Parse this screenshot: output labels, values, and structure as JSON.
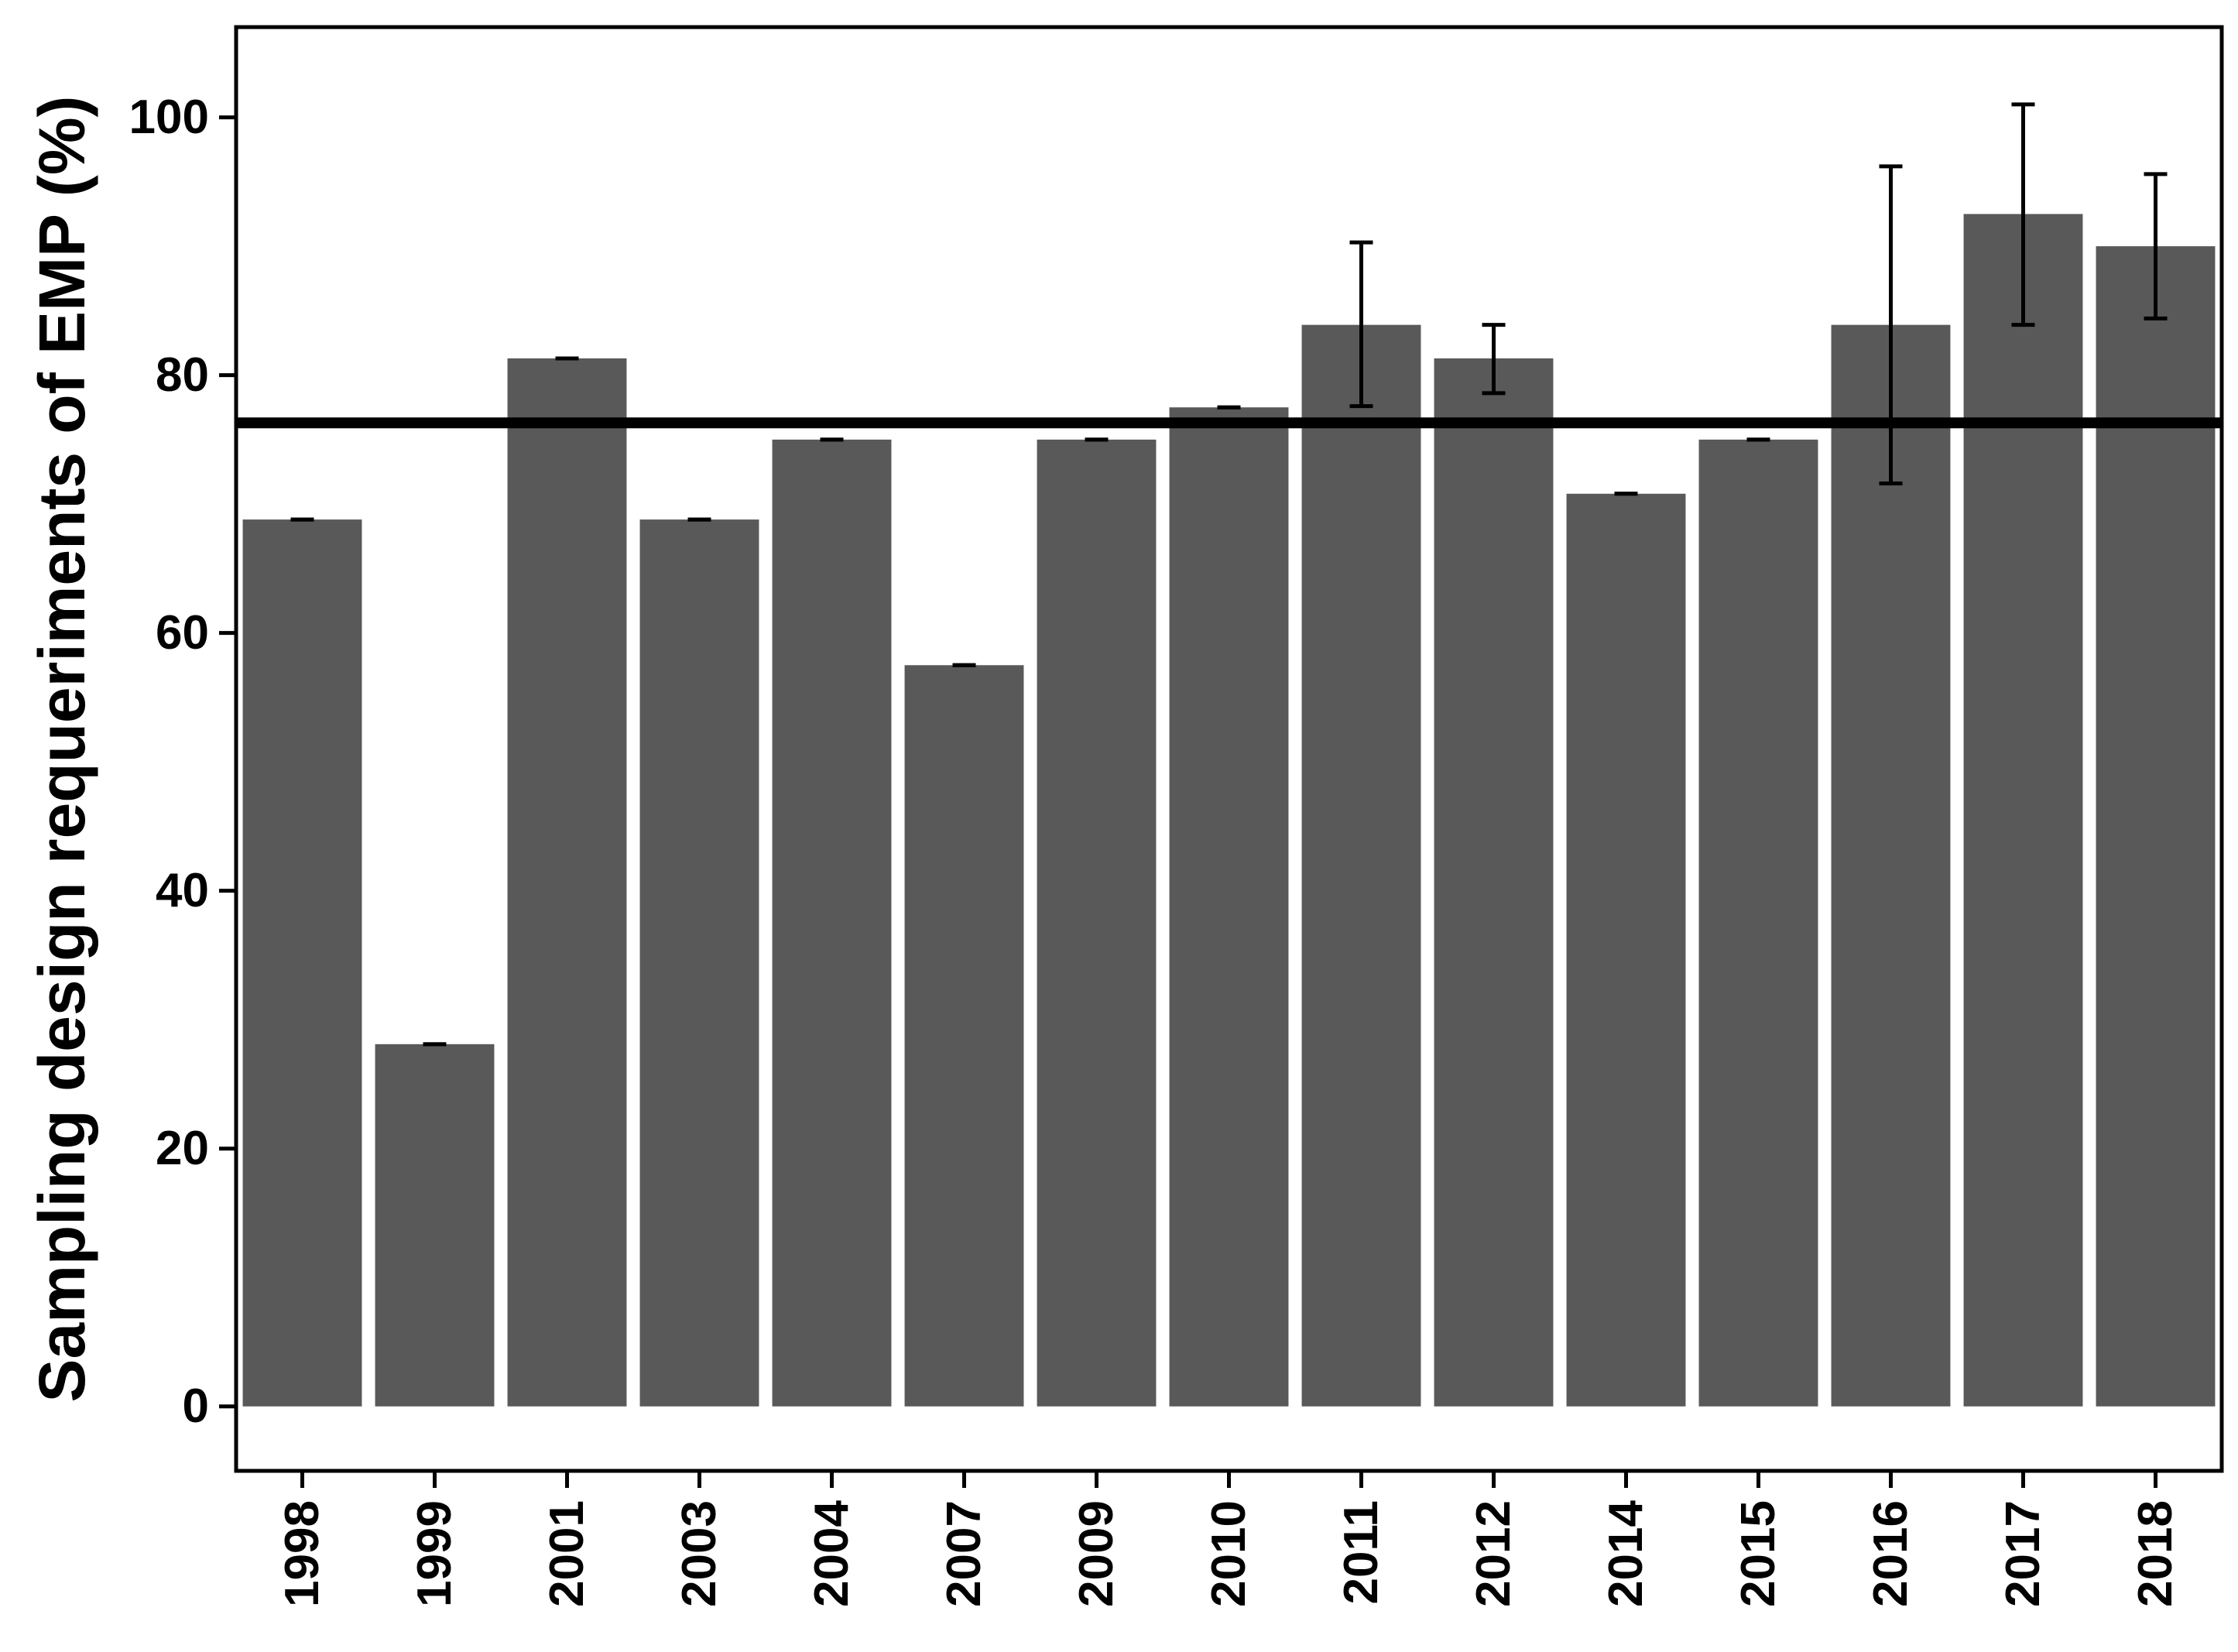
{
  "chart_data": {
    "type": "bar",
    "title": "",
    "xlabel": "",
    "ylabel": "Sampling design requeriments of EMP (%)",
    "ylim": [
      -5,
      107
    ],
    "yticks": [
      0,
      20,
      40,
      60,
      80,
      100
    ],
    "grid": false,
    "legend": "none",
    "bar_color": "#595959",
    "reference_line": {
      "y": 76.3,
      "color": "#000000"
    },
    "categories": [
      "1998",
      "1999",
      "2001",
      "2003",
      "2004",
      "2007",
      "2009",
      "2010",
      "2011",
      "2012",
      "2014",
      "2015",
      "2016",
      "2017",
      "2018"
    ],
    "values": [
      68.8,
      28.1,
      81.3,
      68.8,
      75.0,
      57.5,
      75.0,
      77.5,
      83.9,
      81.3,
      70.8,
      75.0,
      83.9,
      92.5,
      90.0
    ],
    "error_low": [
      68.8,
      28.1,
      81.3,
      68.8,
      75.0,
      57.5,
      75.0,
      77.5,
      77.6,
      78.6,
      70.8,
      75.0,
      71.6,
      83.9,
      84.4
    ],
    "error_high": [
      68.8,
      28.1,
      81.3,
      68.8,
      75.0,
      57.5,
      75.0,
      77.5,
      90.3,
      83.9,
      70.8,
      75.0,
      96.2,
      101.0,
      95.6
    ]
  }
}
